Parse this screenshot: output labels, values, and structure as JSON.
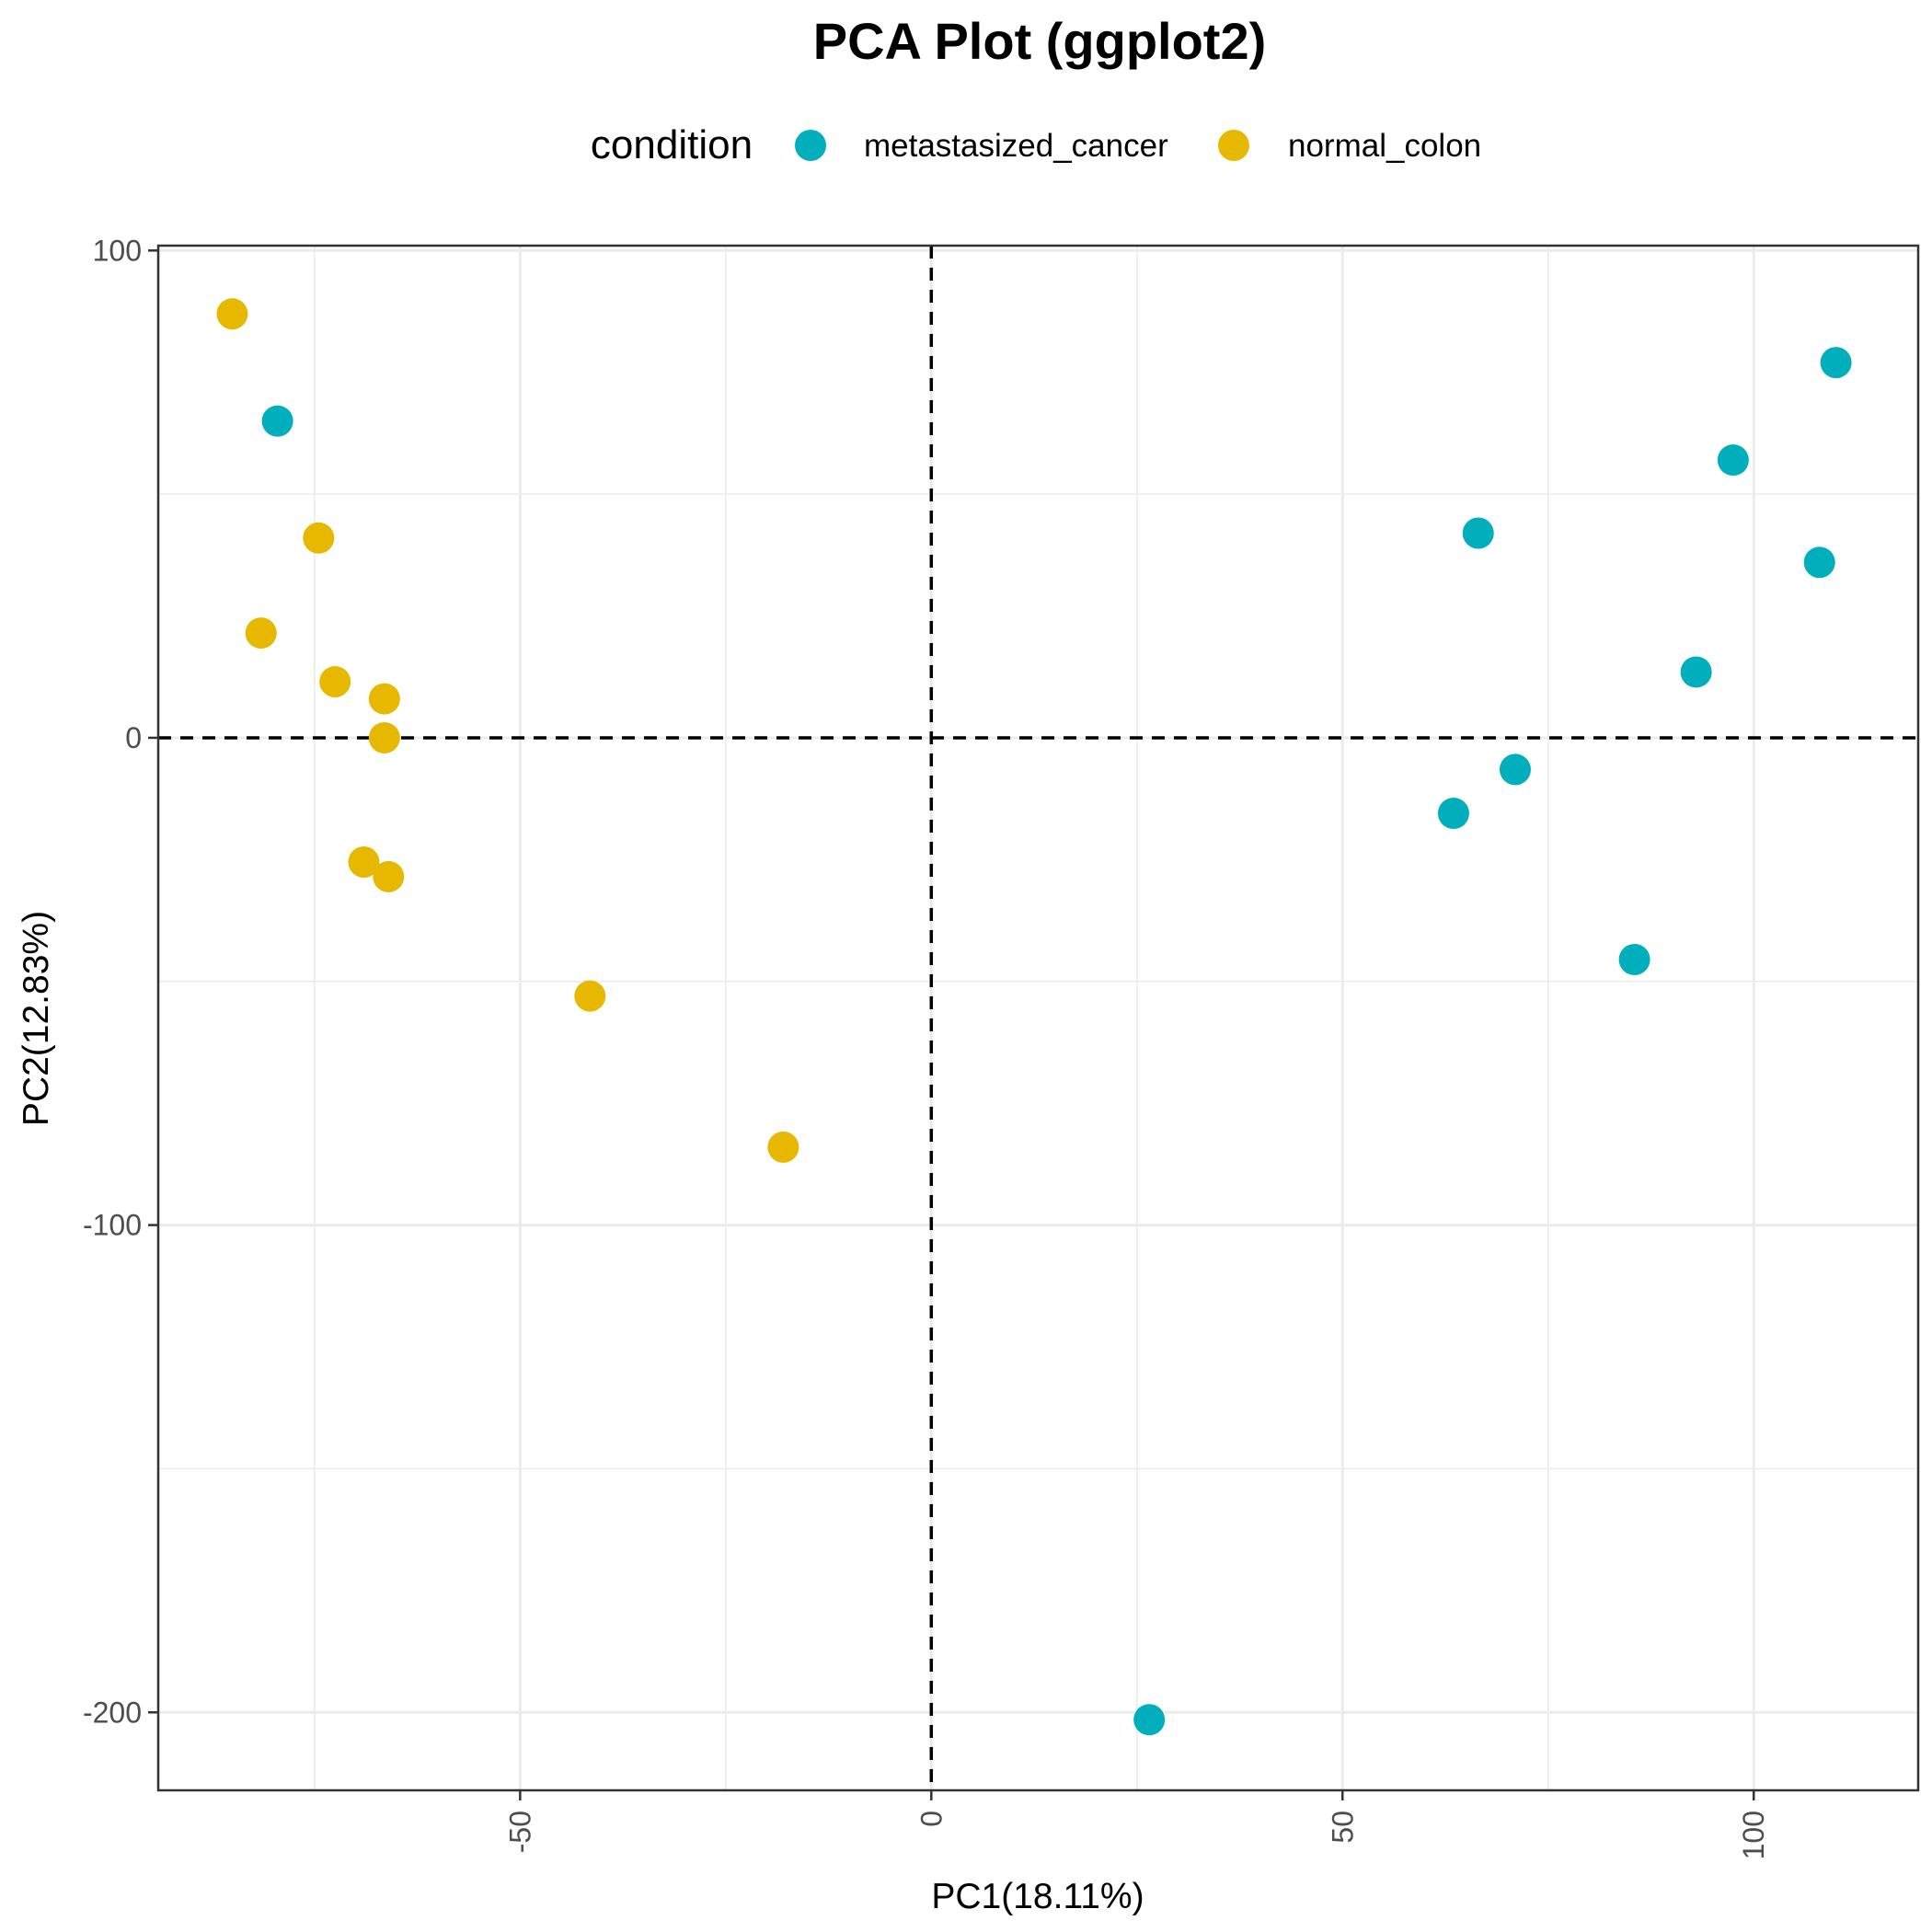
{
  "chart_data": {
    "type": "scatter",
    "title": "PCA Plot (ggplot2)",
    "xlabel": "PC1(18.11%)",
    "ylabel": "PC2(12.83%)",
    "xlim": [
      -94,
      120
    ],
    "ylim": [
      -216,
      101
    ],
    "x_ticks": [
      -50,
      0,
      50,
      100
    ],
    "x_tick_labels": [
      "-50",
      "0",
      "50",
      "100"
    ],
    "y_ticks": [
      -200,
      -100,
      0,
      100
    ],
    "y_tick_labels": [
      "-200",
      "-100",
      "0",
      "100"
    ],
    "grid": true,
    "reference_lines": {
      "x": 0,
      "y": 0,
      "style": "dashed"
    },
    "legend": {
      "title": "condition",
      "position": "top",
      "entries": [
        {
          "label": "metastasized_cancer",
          "color": "#00AFBB"
        },
        {
          "label": "normal_colon",
          "color": "#E7B800"
        }
      ]
    },
    "series": [
      {
        "name": "metastasized_cancer",
        "color": "#00AFBB",
        "points": [
          {
            "x": -79.5,
            "y": 65
          },
          {
            "x": 66.5,
            "y": 42
          },
          {
            "x": 63.5,
            "y": -15.5
          },
          {
            "x": 71,
            "y": -6.5
          },
          {
            "x": 85.5,
            "y": -45.5
          },
          {
            "x": 26.5,
            "y": -201.5
          },
          {
            "x": 93,
            "y": 13.5
          },
          {
            "x": 97.5,
            "y": 57
          },
          {
            "x": 108,
            "y": 36
          },
          {
            "x": 110,
            "y": 77
          }
        ]
      },
      {
        "name": "normal_colon",
        "color": "#E7B800",
        "points": [
          {
            "x": -85,
            "y": 87
          },
          {
            "x": -74.5,
            "y": 41
          },
          {
            "x": -81.5,
            "y": 21.5
          },
          {
            "x": -72.5,
            "y": 11.5
          },
          {
            "x": -66.5,
            "y": 8
          },
          {
            "x": -66.5,
            "y": 0
          },
          {
            "x": -69,
            "y": -25.5
          },
          {
            "x": -66,
            "y": -28.5
          },
          {
            "x": -41.5,
            "y": -53
          },
          {
            "x": -18,
            "y": -84
          }
        ]
      }
    ]
  }
}
